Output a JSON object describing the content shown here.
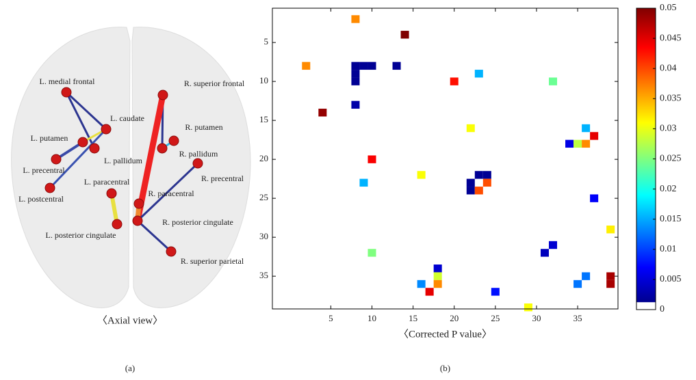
{
  "panel_a": {
    "nodes": [
      "L. medial frontal",
      "L. caudate",
      "L. putamen",
      "L. pallidum",
      "L. precentral",
      "L. postcentral",
      "L. paracentral",
      "L. posterior cingulate",
      "R. superior frontal",
      "R. putamen",
      "R. pallidum",
      "R. precentral",
      "R. paracentral",
      "R. posterior cingulate",
      "R. superior parietal"
    ],
    "x_label": "〈Axial view〉",
    "caption": "(a)"
  },
  "chart_data": {
    "type": "heatmap",
    "x_label": "〈Corrected P value〉",
    "caption": "(b)",
    "x": [
      8,
      14,
      2,
      8,
      9,
      10,
      8,
      8,
      13,
      23,
      20,
      32,
      8,
      4,
      22,
      36,
      37,
      34,
      35,
      36,
      10,
      23,
      24,
      22,
      24,
      22,
      23,
      16,
      9,
      37,
      39,
      32,
      31,
      10,
      18,
      18,
      18,
      16,
      17,
      36,
      35,
      39,
      39,
      25,
      29
    ],
    "y": [
      2,
      4,
      8,
      8,
      8,
      8,
      9,
      10,
      8,
      9,
      10,
      10,
      13,
      14,
      16,
      16,
      17,
      18,
      18,
      18,
      20,
      22,
      22,
      23,
      23,
      24,
      24,
      22,
      23,
      25,
      29,
      31,
      32,
      32,
      34,
      35,
      36,
      36,
      37,
      35,
      36,
      35,
      36,
      37,
      39
    ],
    "values": [
      0.037,
      0.05,
      0.037,
      0.001,
      0.001,
      0.001,
      0.001,
      0.001,
      0.001,
      0.015,
      0.043,
      0.024,
      0.002,
      0.049,
      0.031,
      0.015,
      0.045,
      0.005,
      0.028,
      0.037,
      0.044,
      0.001,
      0.001,
      0.001,
      0.04,
      0.001,
      0.04,
      0.031,
      0.015,
      0.006,
      0.032,
      0.004,
      0.003,
      0.025,
      0.004,
      0.029,
      0.037,
      0.013,
      0.045,
      0.012,
      0.012,
      0.048,
      0.048,
      0.007,
      0.031
    ],
    "xlim": [
      -2.1,
      39.9
    ],
    "ylim": [
      0.6,
      39.2
    ],
    "xticks": [
      5,
      10,
      15,
      20,
      25,
      30,
      35
    ],
    "yticks": [
      5,
      10,
      15,
      20,
      25,
      30,
      35
    ],
    "colormap": "jet",
    "colorbar_lim": [
      0,
      0.05
    ],
    "colorbar_ticks": [
      0,
      0.005,
      0.01,
      0.015,
      0.02,
      0.025,
      0.03,
      0.035,
      0.04,
      0.045,
      0.05
    ]
  }
}
